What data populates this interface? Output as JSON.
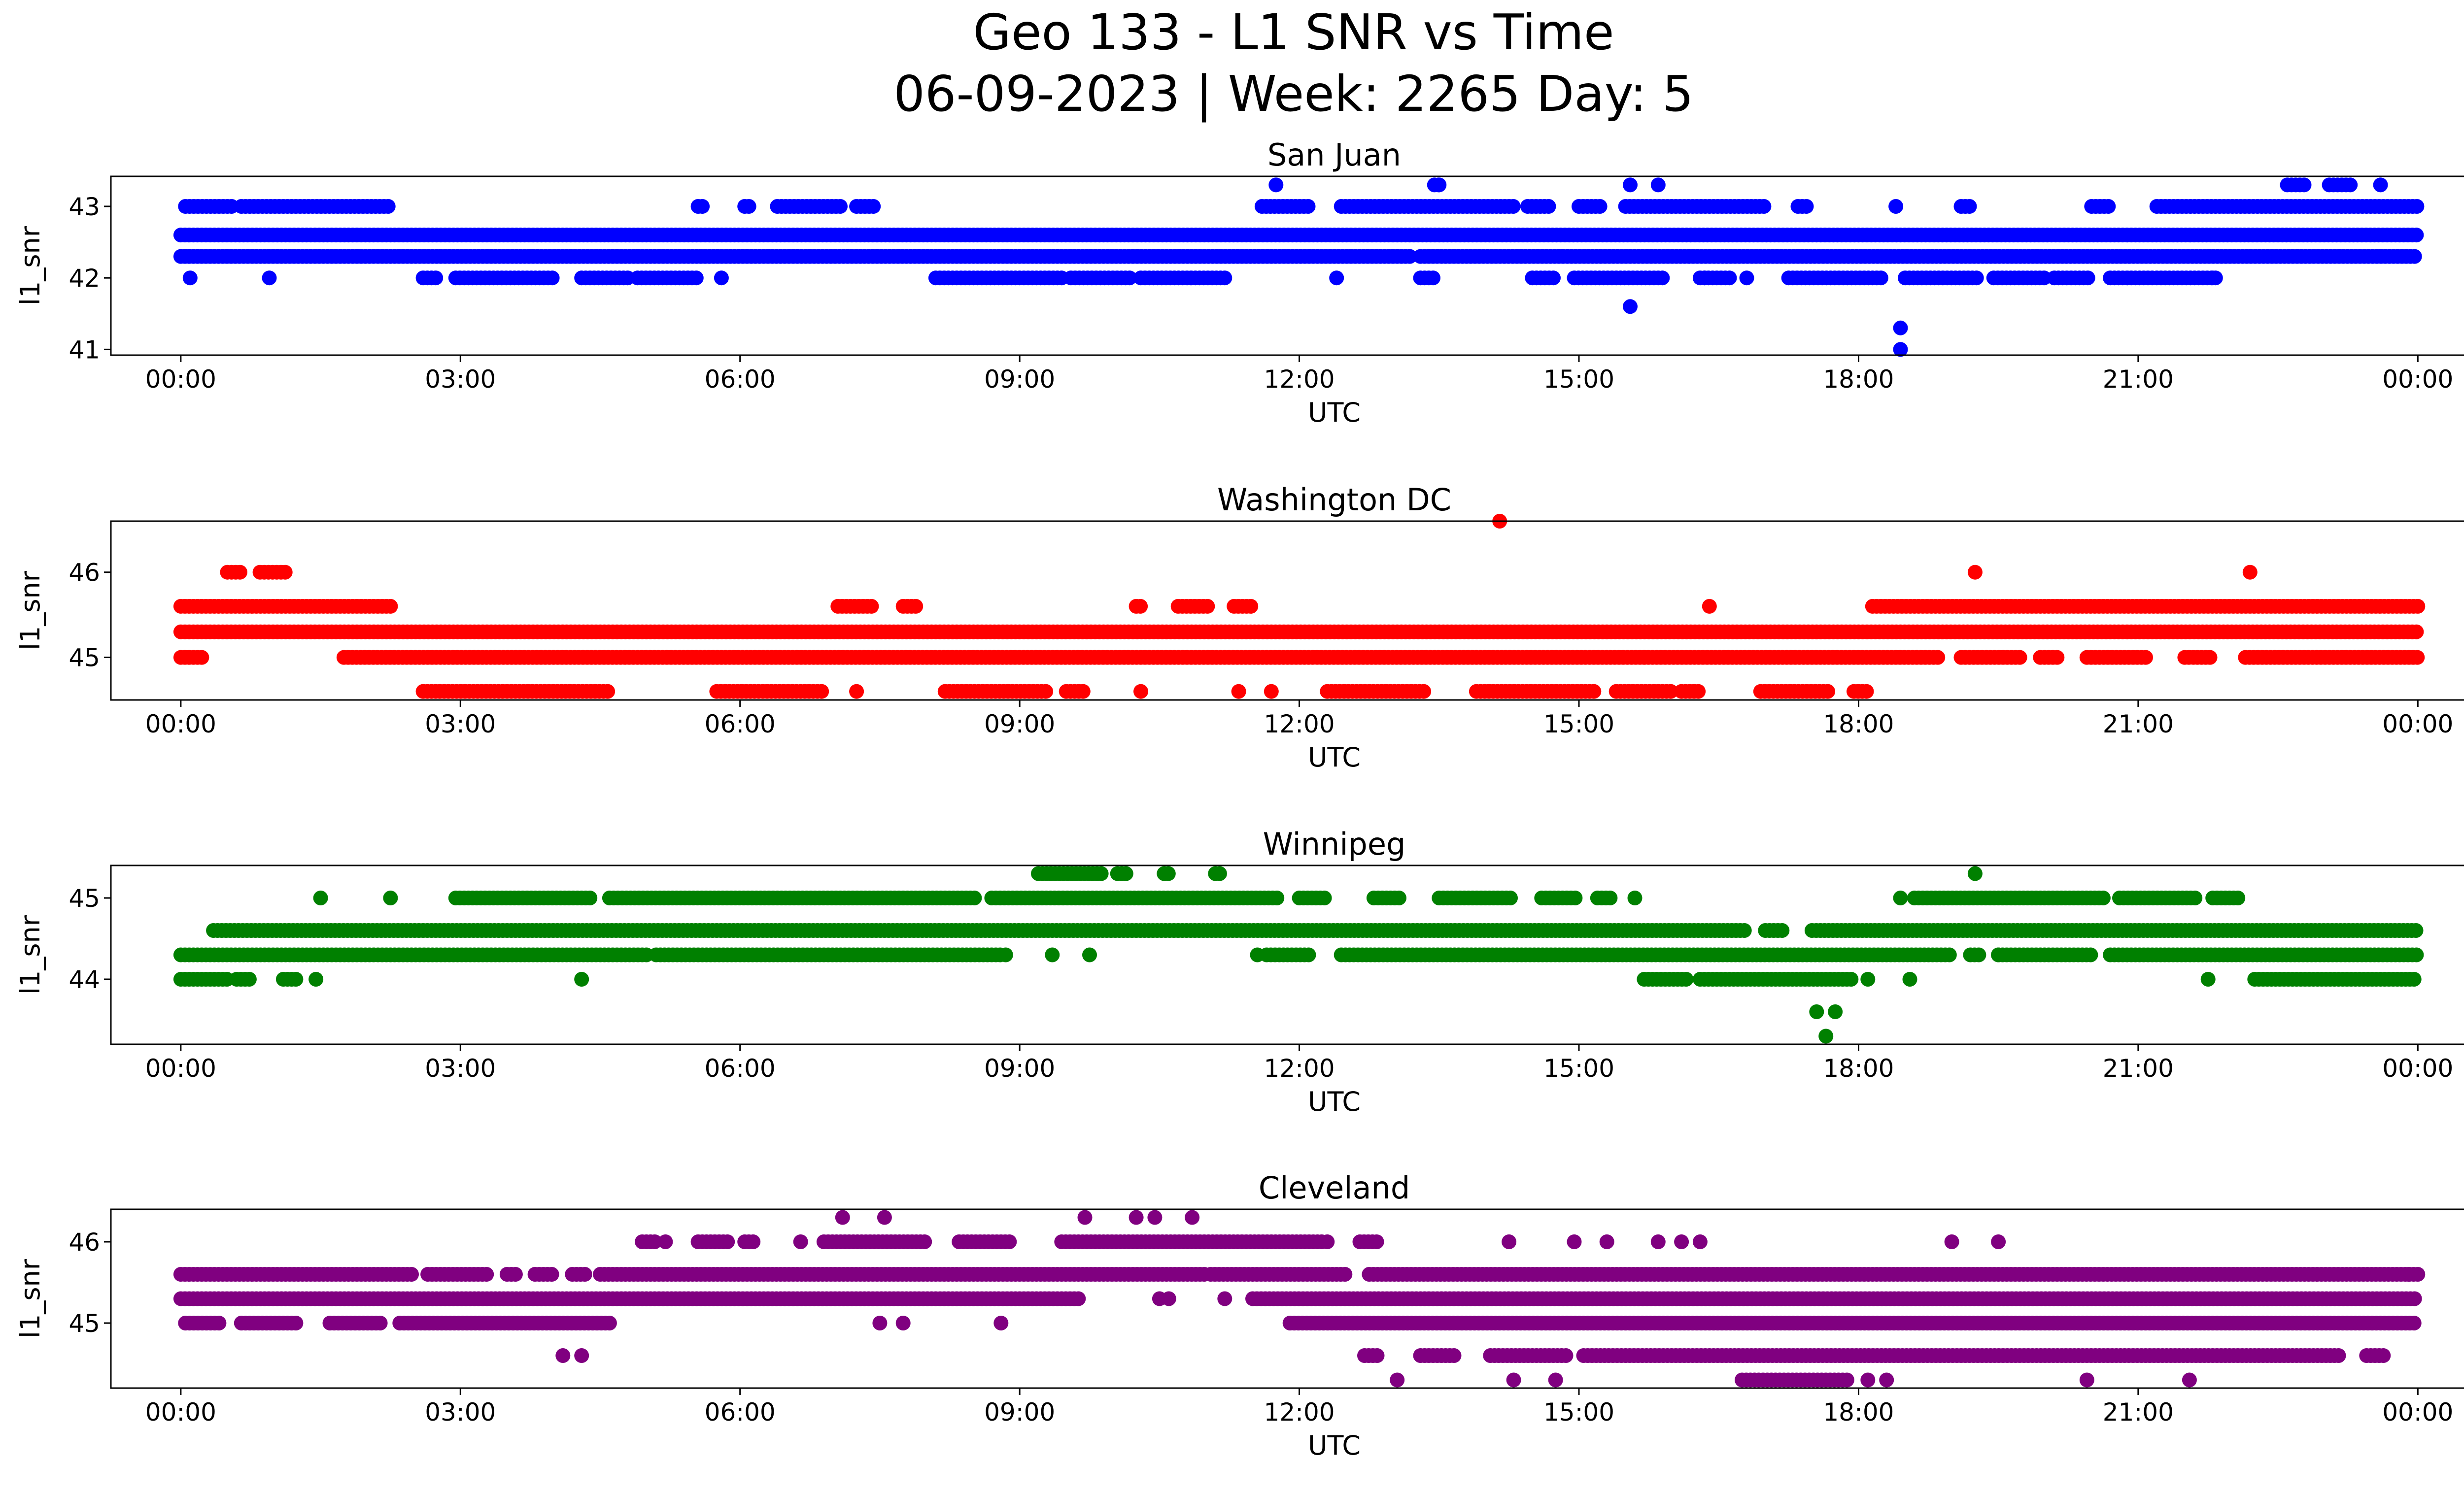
{
  "title_line1": "Geo 133 - L1 SNR vs Time",
  "title_line2": "06-09-2023 | Week: 2265 Day: 5",
  "chart_data": [
    {
      "type": "scatter",
      "title": "San Juan",
      "xlabel": "UTC",
      "ylabel": "l1_snr",
      "color": "#0000ff",
      "xlim_hours": [
        -0.75,
        25.5
      ],
      "ylim": [
        40.92,
        43.42
      ],
      "yticks": [
        41,
        42,
        43
      ],
      "xtick_labels": [
        "00:00",
        "03:00",
        "06:00",
        "09:00",
        "12:00",
        "15:00",
        "18:00",
        "21:00",
        "00:00"
      ],
      "bands": [
        {
          "y": 42.6,
          "segments": [
            [
              0,
              24
            ]
          ]
        },
        {
          "y": 42.3,
          "segments": [
            [
              0,
              13.2
            ],
            [
              13.3,
              24
            ]
          ]
        },
        {
          "y": 43.0,
          "segments": [
            [
              0.05,
              0.55
            ],
            [
              0.65,
              2.25
            ],
            [
              5.55,
              5.6
            ],
            [
              6.05,
              6.1
            ],
            [
              6.4,
              7.1
            ],
            [
              7.25,
              7.45
            ],
            [
              11.6,
              12.1
            ],
            [
              12.45,
              14.3
            ],
            [
              14.45,
              14.7
            ],
            [
              15.0,
              15.25
            ],
            [
              15.5,
              17.0
            ],
            [
              17.35,
              17.45
            ],
            [
              19.1,
              19.2
            ],
            [
              20.5,
              20.7
            ],
            [
              21.2,
              24.0
            ]
          ]
        },
        {
          "y": 42.0,
          "segments": [
            [
              2.6,
              2.75
            ],
            [
              2.95,
              4.0
            ],
            [
              4.3,
              4.8
            ],
            [
              4.9,
              5.55
            ],
            [
              8.1,
              9.45
            ],
            [
              9.55,
              10.2
            ],
            [
              10.3,
              11.2
            ],
            [
              13.3,
              13.45
            ],
            [
              14.5,
              14.75
            ],
            [
              14.95,
              15.9
            ],
            [
              16.3,
              16.65
            ],
            [
              17.25,
              18.25
            ],
            [
              18.5,
              19.3
            ],
            [
              19.45,
              20.0
            ],
            [
              20.1,
              20.5
            ],
            [
              20.7,
              21.15
            ],
            [
              21.2,
              21.85
            ]
          ]
        },
        {
          "y": 43.3,
          "segments": [
            [
              13.45,
              13.5
            ],
            [
              22.6,
              22.8
            ],
            [
              23.05,
              23.3
            ]
          ]
        }
      ],
      "points": [
        [
          0.1,
          42.0
        ],
        [
          0.95,
          42.0
        ],
        [
          5.8,
          42.0
        ],
        [
          11.75,
          43.3
        ],
        [
          12.4,
          42.0
        ],
        [
          13.5,
          43.3
        ],
        [
          15.55,
          43.3
        ],
        [
          15.85,
          43.3
        ],
        [
          16.35,
          42.0
        ],
        [
          16.8,
          42.0
        ],
        [
          18.4,
          43.0
        ],
        [
          15.55,
          41.6
        ],
        [
          18.45,
          41.3
        ],
        [
          18.45,
          41.0
        ],
        [
          23.6,
          43.3
        ],
        [
          21.8,
          42.0
        ]
      ]
    },
    {
      "type": "scatter",
      "title": "Washington DC",
      "xlabel": "UTC",
      "ylabel": "l1_snr",
      "color": "#ff0000",
      "xlim_hours": [
        -0.75,
        25.5
      ],
      "ylim": [
        44.5,
        46.6
      ],
      "yticks": [
        45,
        46
      ],
      "xtick_labels": [
        "00:00",
        "03:00",
        "06:00",
        "09:00",
        "12:00",
        "15:00",
        "18:00",
        "21:00",
        "00:00"
      ],
      "bands": [
        {
          "y": 45.3,
          "segments": [
            [
              0,
              24
            ]
          ]
        },
        {
          "y": 45.0,
          "segments": [
            [
              0,
              0.25
            ],
            [
              1.75,
              18.85
            ],
            [
              19.1,
              19.75
            ],
            [
              19.95,
              20.15
            ],
            [
              20.45,
              21.1
            ],
            [
              21.5,
              21.8
            ],
            [
              22.15,
              24.0
            ]
          ]
        },
        {
          "y": 45.6,
          "segments": [
            [
              0,
              2.25
            ],
            [
              7.05,
              7.45
            ],
            [
              7.75,
              7.9
            ],
            [
              10.25,
              10.3
            ],
            [
              10.7,
              11.05
            ],
            [
              11.3,
              11.5
            ],
            [
              18.15,
              24.0
            ]
          ]
        },
        {
          "y": 46.0,
          "segments": [
            [
              0.5,
              0.65
            ],
            [
              0.85,
              1.15
            ]
          ]
        },
        {
          "y": 44.6,
          "segments": [
            [
              2.6,
              4.6
            ],
            [
              5.75,
              6.9
            ],
            [
              8.2,
              9.3
            ],
            [
              9.5,
              9.7
            ],
            [
              12.3,
              13.35
            ],
            [
              13.9,
              15.2
            ],
            [
              15.4,
              16.0
            ],
            [
              16.1,
              16.3
            ],
            [
              16.95,
              17.7
            ],
            [
              17.95,
              18.1
            ]
          ]
        }
      ],
      "points": [
        [
          7.25,
          44.6
        ],
        [
          10.3,
          44.6
        ],
        [
          11.35,
          44.6
        ],
        [
          11.7,
          44.6
        ],
        [
          14.15,
          46.6
        ],
        [
          16.4,
          45.6
        ],
        [
          19.25,
          46.0
        ],
        [
          22.2,
          46.0
        ],
        [
          15.7,
          45.0
        ]
      ]
    },
    {
      "type": "scatter",
      "title": "Winnipeg",
      "xlabel": "UTC",
      "ylabel": "l1_snr",
      "color": "#008000",
      "xlim_hours": [
        -0.75,
        25.5
      ],
      "ylim": [
        43.2,
        45.4
      ],
      "yticks": [
        44,
        45
      ],
      "xtick_labels": [
        "00:00",
        "03:00",
        "06:00",
        "09:00",
        "12:00",
        "15:00",
        "18:00",
        "21:00",
        "00:00"
      ],
      "bands": [
        {
          "y": 44.6,
          "segments": [
            [
              0.35,
              16.8
            ],
            [
              17.0,
              17.2
            ],
            [
              17.5,
              24.0
            ]
          ]
        },
        {
          "y": 44.3,
          "segments": [
            [
              0,
              5.0
            ],
            [
              5.1,
              8.8
            ],
            [
              11.65,
              12.1
            ],
            [
              12.45,
              19.0
            ],
            [
              19.2,
              19.3
            ],
            [
              19.5,
              20.5
            ],
            [
              20.7,
              24.0
            ]
          ]
        },
        {
          "y": 45.0,
          "segments": [
            [
              2.95,
              4.4
            ],
            [
              4.6,
              8.55
            ],
            [
              8.7,
              11.8
            ],
            [
              12.0,
              12.3
            ],
            [
              12.8,
              13.1
            ],
            [
              13.5,
              14.3
            ],
            [
              14.6,
              15.0
            ],
            [
              15.2,
              15.35
            ],
            [
              18.6,
              20.65
            ],
            [
              20.8,
              21.65
            ],
            [
              21.8,
              22.1
            ]
          ]
        },
        {
          "y": 44.0,
          "segments": [
            [
              0,
              0.5
            ],
            [
              0.6,
              0.75
            ],
            [
              1.1,
              1.25
            ],
            [
              15.7,
              16.15
            ],
            [
              16.3,
              17.95
            ],
            [
              22.25,
              24.0
            ]
          ]
        },
        {
          "y": 45.3,
          "segments": [
            [
              9.2,
              9.9
            ],
            [
              10.05,
              10.15
            ],
            [
              10.55,
              10.6
            ],
            [
              11.1,
              11.15
            ]
          ]
        }
      ],
      "points": [
        [
          1.45,
          44.0
        ],
        [
          1.5,
          45.0
        ],
        [
          2.25,
          45.0
        ],
        [
          4.3,
          44.0
        ],
        [
          8.85,
          44.3
        ],
        [
          9.35,
          44.3
        ],
        [
          9.75,
          44.3
        ],
        [
          11.55,
          44.3
        ],
        [
          15.6,
          45.0
        ],
        [
          17.55,
          43.6
        ],
        [
          17.75,
          43.6
        ],
        [
          17.65,
          43.3
        ],
        [
          18.1,
          44.0
        ],
        [
          18.45,
          45.0
        ],
        [
          18.55,
          44.0
        ],
        [
          21.75,
          44.0
        ],
        [
          19.25,
          45.3
        ],
        [
          19.5,
          44.3
        ]
      ]
    },
    {
      "type": "scatter",
      "title": "Cleveland",
      "xlabel": "UTC",
      "ylabel": "l1_snr",
      "color": "#800080",
      "xlim_hours": [
        -0.75,
        25.5
      ],
      "ylim": [
        44.2,
        46.4
      ],
      "yticks": [
        45,
        46
      ],
      "xtick_labels": [
        "00:00",
        "03:00",
        "06:00",
        "09:00",
        "12:00",
        "15:00",
        "18:00",
        "21:00",
        "00:00"
      ],
      "bands": [
        {
          "y": 45.3,
          "segments": [
            [
              0,
              9.65
            ],
            [
              11.5,
              24.0
            ]
          ]
        },
        {
          "y": 45.6,
          "segments": [
            [
              0,
              2.5
            ],
            [
              2.65,
              3.3
            ],
            [
              3.5,
              3.6
            ],
            [
              3.8,
              4.0
            ],
            [
              4.2,
              4.35
            ],
            [
              4.5,
              11.0
            ],
            [
              11.05,
              12.5
            ],
            [
              12.75,
              24.0
            ]
          ]
        },
        {
          "y": 45.0,
          "segments": [
            [
              0.05,
              0.45
            ],
            [
              0.65,
              1.25
            ],
            [
              1.6,
              2.15
            ],
            [
              2.35,
              4.6
            ],
            [
              11.9,
              24.0
            ]
          ]
        },
        {
          "y": 46.0,
          "segments": [
            [
              4.95,
              5.1
            ],
            [
              5.55,
              5.9
            ],
            [
              6.05,
              6.15
            ],
            [
              6.9,
              8.0
            ],
            [
              8.35,
              8.9
            ],
            [
              9.45,
              12.25
            ],
            [
              12.65,
              12.85
            ]
          ]
        },
        {
          "y": 44.6,
          "segments": [
            [
              12.7,
              12.85
            ],
            [
              13.3,
              13.7
            ],
            [
              14.05,
              14.9
            ],
            [
              15.05,
              23.15
            ],
            [
              23.45,
              23.65
            ]
          ]
        },
        {
          "y": 44.3,
          "segments": [
            [
              16.75,
              17.9
            ]
          ]
        }
      ],
      "points": [
        [
          4.1,
          44.6
        ],
        [
          4.3,
          44.6
        ],
        [
          5.2,
          46.0
        ],
        [
          6.65,
          46.0
        ],
        [
          7.1,
          46.3
        ],
        [
          7.55,
          46.3
        ],
        [
          7.5,
          45.0
        ],
        [
          7.75,
          45.0
        ],
        [
          8.8,
          45.0
        ],
        [
          9.7,
          46.3
        ],
        [
          10.25,
          46.3
        ],
        [
          10.45,
          46.3
        ],
        [
          10.85,
          46.3
        ],
        [
          10.5,
          45.3
        ],
        [
          10.6,
          45.3
        ],
        [
          11.2,
          45.3
        ],
        [
          13.05,
          44.3
        ],
        [
          14.3,
          44.3
        ],
        [
          14.75,
          44.3
        ],
        [
          14.25,
          46.0
        ],
        [
          14.95,
          46.0
        ],
        [
          15.3,
          46.0
        ],
        [
          15.85,
          46.0
        ],
        [
          16.1,
          46.0
        ],
        [
          16.3,
          46.0
        ],
        [
          18.1,
          44.3
        ],
        [
          18.3,
          44.3
        ],
        [
          19.0,
          46.0
        ],
        [
          19.5,
          46.0
        ],
        [
          20.45,
          44.3
        ],
        [
          21.55,
          44.3
        ],
        [
          23.9,
          45.6
        ],
        [
          12.3,
          46.0
        ]
      ]
    }
  ]
}
